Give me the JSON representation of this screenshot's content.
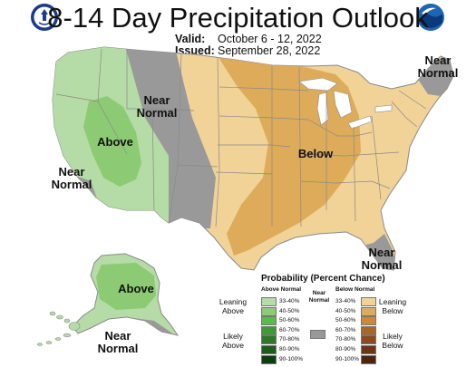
{
  "title": "8-14 Day Precipitation Outlook",
  "valid_label": "Valid:",
  "valid_value": "October 6 - 12, 2022",
  "issued_label": "Issued:",
  "issued_value": "September 28, 2022",
  "map_labels": {
    "above_west": "Above",
    "near_normal_rockies": "Near Normal",
    "near_normal_socal": "Near Normal",
    "below": "Below",
    "near_normal_ne": "Near Normal",
    "near_normal_fl": "Near Normal",
    "above_ak": "Above",
    "near_normal_ak": "Near Normal"
  },
  "legend": {
    "title": "Probability (Percent Chance)",
    "above_header": "Above Normal",
    "below_header": "Below Normal",
    "near_header": "Near Normal",
    "above_ranges": [
      "33-40%",
      "40-50%",
      "50-60%",
      "60-70%",
      "70-80%",
      "80-90%",
      "90-100%"
    ],
    "below_ranges": [
      "33-40%",
      "40-50%",
      "50-60%",
      "60-70%",
      "70-80%",
      "80-90%",
      "90-100%"
    ],
    "leaning_above": "Leaning Above",
    "likely_above": "Likely Above",
    "leaning_below": "Leaning Below",
    "likely_below": "Likely Below"
  },
  "colors": {
    "above": [
      "#b5dba6",
      "#8ccb74",
      "#5cb94b",
      "#3d9a36",
      "#2c7a28",
      "#1d5c1b",
      "#0d3d0f"
    ],
    "below": [
      "#f1d297",
      "#ddab5a",
      "#c98b3b",
      "#a96626",
      "#8d4b1c",
      "#6d3416",
      "#4e2410"
    ],
    "near_normal": "#999999"
  }
}
